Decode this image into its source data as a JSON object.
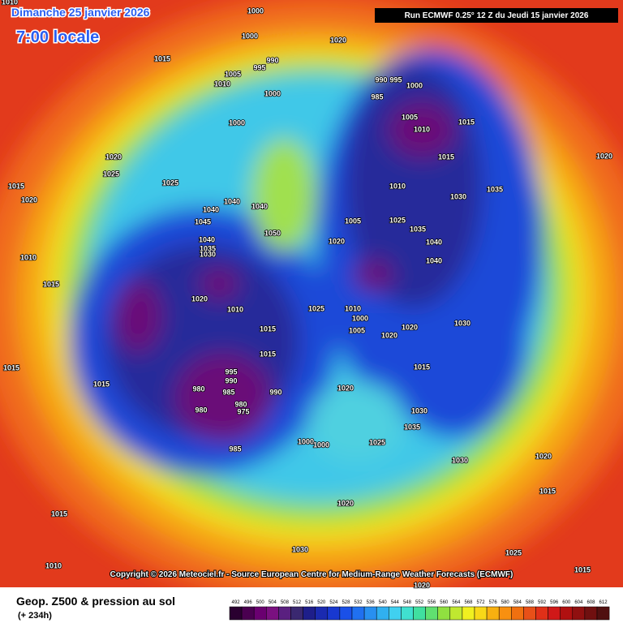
{
  "header": {
    "date": "Dimanche 25 janvier 2026",
    "time": "7:00 locale",
    "run": "Run ECMWF 0.25° 12 Z du Jeudi 15 janvier 2026"
  },
  "copyright": "Copyright © 2026 Meteociel.fr - Source European Centre for Medium-Range Weather Forecasts (ECMWF)",
  "footer": {
    "title": "Geop. Z500 & pression au sol",
    "lead": "(+ 234h)"
  },
  "colorbar": {
    "ticks": [
      492,
      496,
      500,
      504,
      508,
      512,
      516,
      520,
      524,
      528,
      532,
      536,
      540,
      544,
      548,
      552,
      556,
      560,
      564,
      568,
      572,
      576,
      580,
      584,
      588,
      592,
      596,
      600,
      604,
      608,
      612
    ],
    "colors": [
      "#2a0030",
      "#4a0050",
      "#6a0070",
      "#7a1080",
      "#5a2080",
      "#3a2870",
      "#1e1e8a",
      "#1a2ab0",
      "#1838d0",
      "#1a50e8",
      "#2070f0",
      "#2890f0",
      "#30b0f0",
      "#40d0f0",
      "#40e0d0",
      "#40e0a0",
      "#60e070",
      "#90e040",
      "#c0e830",
      "#f0f020",
      "#f8d818",
      "#f8b010",
      "#f89010",
      "#f07010",
      "#e85018",
      "#e03018",
      "#d01818",
      "#b01010",
      "#901010",
      "#701010",
      "#501010"
    ]
  },
  "isobar_labels": [
    "1010",
    "1000",
    "1000",
    "1020",
    "1015",
    "990",
    "995",
    "990",
    "995",
    "1000",
    "1005",
    "1010",
    "1000",
    "985",
    "1005",
    "1010",
    "1015",
    "1000",
    "1015",
    "1020",
    "1025",
    "1025",
    "1015",
    "1020",
    "1040",
    "1040",
    "1040",
    "1010",
    "1030",
    "1035",
    "1020",
    "1005",
    "1025",
    "1035",
    "1050",
    "1045",
    "1040",
    "1035",
    "1030",
    "1020",
    "1040",
    "1040",
    "1010",
    "1015",
    "1020",
    "1010",
    "1025",
    "1010",
    "1000",
    "1005",
    "1020",
    "1020",
    "1030",
    "1015",
    "1015",
    "1015",
    "1015",
    "1015",
    "980",
    "985",
    "990",
    "995",
    "990",
    "980",
    "980",
    "975",
    "1020",
    "1030",
    "1035",
    "985",
    "1000",
    "1000",
    "1025",
    "1030",
    "1020",
    "1015",
    "1015",
    "1020",
    "1030",
    "1010",
    "1015",
    "1025",
    "1020"
  ]
}
